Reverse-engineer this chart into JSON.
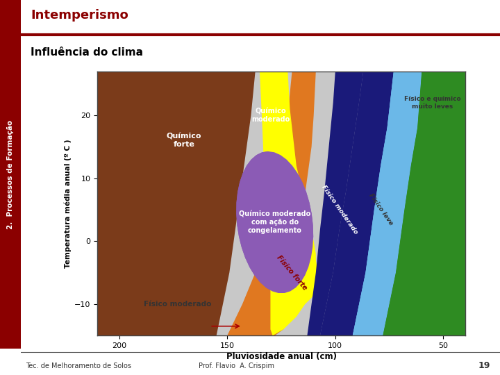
{
  "title": "Intemperismo",
  "subtitle": "Influência do clima",
  "side_label": "2.  Processos de Formação",
  "footer_left": "Tec. de Melhoramento de Solos",
  "footer_center": "Prof. Flavio  A. Crispim",
  "footer_page": "19",
  "background_color": "#ffffff",
  "header_bar_color": "#8B0000",
  "title_color": "#8B0000",
  "side_bar_color": "#8B0000",
  "chart_xlabel": "Pluviosidade anual (cm)",
  "chart_ylabel": "Temperatura média anual (º C )",
  "x_ticks": [
    200,
    150,
    100,
    50
  ],
  "y_ticks": [
    -10,
    0,
    10,
    20
  ],
  "xlim": [
    210,
    40
  ],
  "ylim": [
    -15,
    27
  ]
}
